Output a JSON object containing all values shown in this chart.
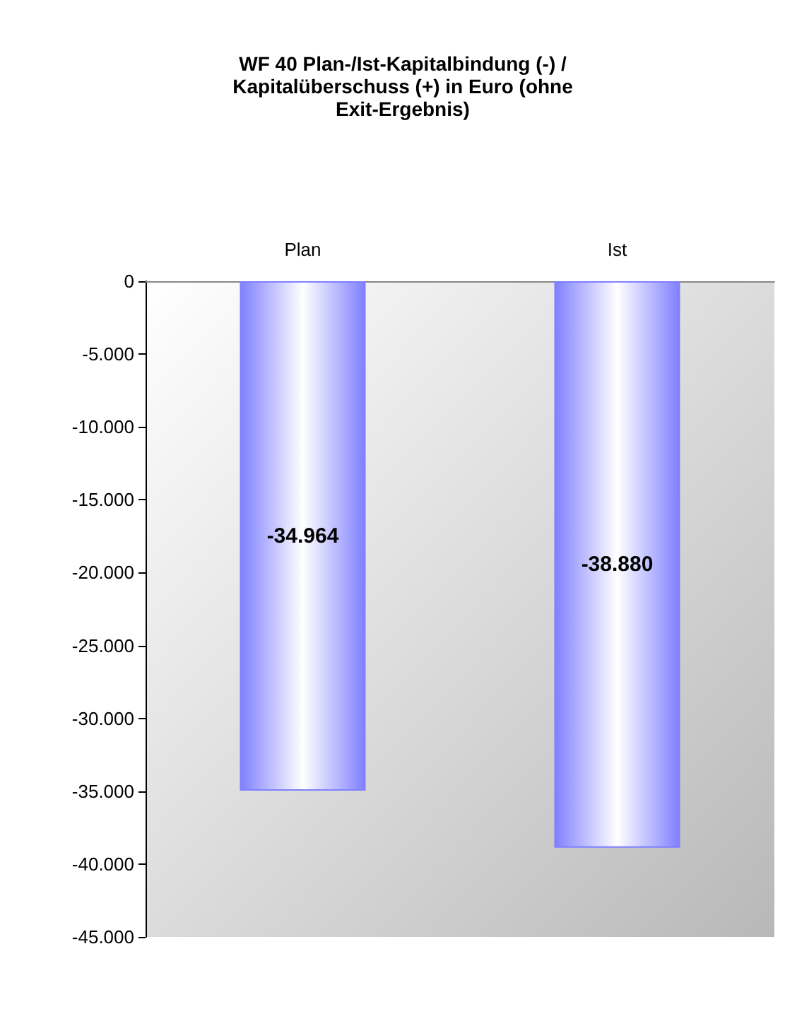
{
  "chart_data": {
    "type": "bar",
    "title": "WF 40 Plan-/Ist-Kapitalbindung (-) /\nKapitalüberschuss (+) in Euro (ohne\nExit-Ergebnis)",
    "categories": [
      "Plan",
      "Ist"
    ],
    "values": [
      -34964,
      -38880
    ],
    "value_labels": [
      "-34.964",
      "-38.880"
    ],
    "color": "#8080ff",
    "ylim": [
      -45000,
      0
    ],
    "yticks": [
      {
        "value": 0,
        "label": "0"
      },
      {
        "value": -5000,
        "label": "-5.000"
      },
      {
        "value": -10000,
        "label": "-10.000"
      },
      {
        "value": -15000,
        "label": "-15.000"
      },
      {
        "value": -20000,
        "label": "-20.000"
      },
      {
        "value": -25000,
        "label": "-25.000"
      },
      {
        "value": -30000,
        "label": "-30.000"
      },
      {
        "value": -35000,
        "label": "-35.000"
      },
      {
        "value": -40000,
        "label": "-40.000"
      },
      {
        "value": -45000,
        "label": "-45.000"
      }
    ],
    "grid": false
  }
}
